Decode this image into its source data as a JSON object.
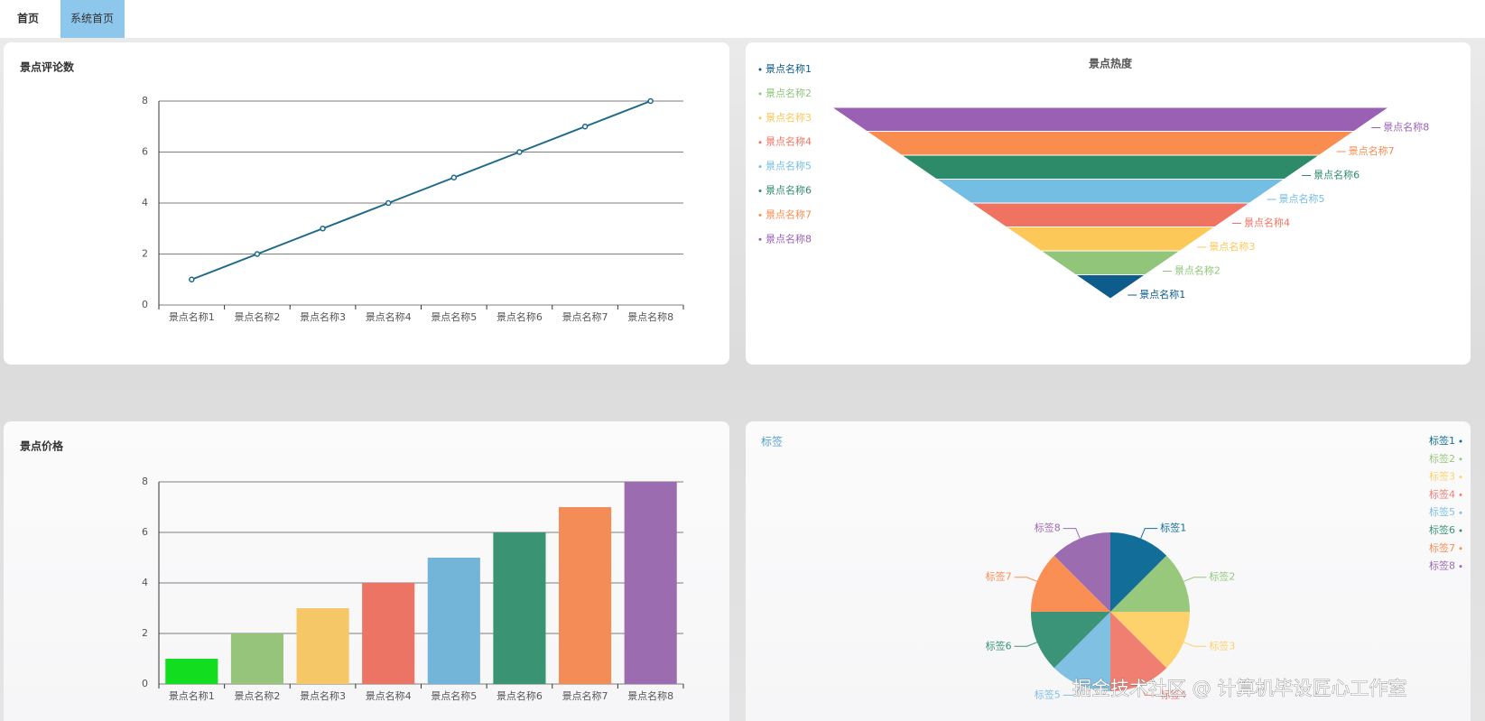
{
  "tabs": [
    "首页",
    "系统首页"
  ],
  "chart_data": [
    {
      "type": "line",
      "title": "景点评论数",
      "categories": [
        "景点名称1",
        "景点名称2",
        "景点名称3",
        "景点名称4",
        "景点名称5",
        "景点名称6",
        "景点名称7",
        "景点名称8"
      ],
      "values": [
        1,
        2,
        3,
        4,
        5,
        6,
        7,
        8
      ],
      "color": "#1f6a8a",
      "ylim": [
        0,
        8
      ],
      "yticks": [
        0,
        2,
        4,
        6,
        8
      ],
      "grid": true
    },
    {
      "type": "funnel",
      "title": "景点热度",
      "categories": [
        "景点名称1",
        "景点名称2",
        "景点名称3",
        "景点名称4",
        "景点名称5",
        "景点名称6",
        "景点名称7",
        "景点名称8"
      ],
      "values": [
        1,
        2,
        3,
        4,
        5,
        6,
        7,
        8
      ],
      "colors": [
        "#0d5c8c",
        "#91c67a",
        "#fcc858",
        "#f07260",
        "#74bde3",
        "#2e8b69",
        "#f98c4f",
        "#9a60b4"
      ],
      "legend": "left"
    },
    {
      "type": "bar",
      "title": "景点价格",
      "categories": [
        "景点名称1",
        "景点名称2",
        "景点名称3",
        "景点名称4",
        "景点名称5",
        "景点名称6",
        "景点名称7",
        "景点名称8"
      ],
      "values": [
        1,
        2,
        3,
        4,
        5,
        6,
        7,
        8
      ],
      "colors": [
        "#12de1f",
        "#95c47a",
        "#f5c767",
        "#ec7464",
        "#72b5d8",
        "#3a9474",
        "#f48c58",
        "#9b6db0"
      ],
      "ylim": [
        0,
        8
      ],
      "yticks": [
        0,
        2,
        4,
        6,
        8
      ],
      "grid": true
    },
    {
      "type": "pie",
      "title": "标签",
      "categories": [
        "标签1",
        "标签2",
        "标签3",
        "标签4",
        "标签5",
        "标签6",
        "标签7",
        "标签8"
      ],
      "values": [
        1,
        1,
        1,
        1,
        1,
        1,
        1,
        1
      ],
      "colors": [
        "#126e99",
        "#98c87c",
        "#fdd16c",
        "#f07f72",
        "#7fc0e3",
        "#3b9478",
        "#f98f55",
        "#9c6cb1"
      ],
      "legend": "right"
    }
  ],
  "watermark": "掘金技术社区 @ 计算机毕设匠心工作室"
}
